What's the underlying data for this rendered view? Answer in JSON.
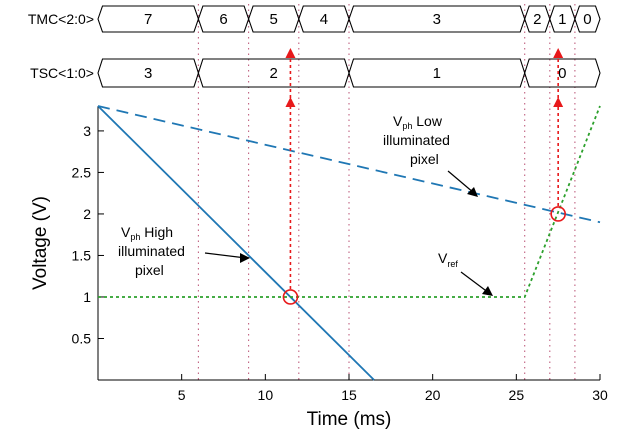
{
  "chart_data": {
    "type": "line",
    "xlabel": "Time (ms)",
    "ylabel": "Voltage (V)",
    "xlim": [
      0,
      30
    ],
    "ylim": [
      0,
      3.3
    ],
    "x_ticks": [
      5,
      10,
      15,
      20,
      25,
      30
    ],
    "y_ticks": [
      0.5,
      1,
      1.5,
      2,
      2.5,
      3
    ],
    "grid": "vertical dotted lines at bus transitions",
    "series": [
      {
        "id": "high",
        "style": "solid",
        "color": "#1f77b4",
        "points": [
          [
            0,
            3.3
          ],
          [
            16.5,
            0
          ]
        ]
      },
      {
        "id": "low",
        "style": "dashed",
        "color": "#1f77b4",
        "points": [
          [
            0,
            3.3
          ],
          [
            30,
            1.9
          ]
        ]
      },
      {
        "id": "ref",
        "style": "dotted",
        "color": "#2ca02c",
        "points": [
          [
            0,
            1
          ],
          [
            25.5,
            1
          ],
          [
            30,
            3.3
          ]
        ]
      }
    ],
    "crossings": [
      {
        "x": 11.5,
        "y": 1.0
      },
      {
        "x": 27.5,
        "y": 2.0
      }
    ],
    "timing_buses": [
      {
        "label": "TMC<2:0>",
        "segments": [
          {
            "from": 0,
            "to": 6,
            "value": "7"
          },
          {
            "from": 6,
            "to": 9,
            "value": "6"
          },
          {
            "from": 9,
            "to": 12,
            "value": "5"
          },
          {
            "from": 12,
            "to": 15,
            "value": "4"
          },
          {
            "from": 15,
            "to": 25.5,
            "value": "3"
          },
          {
            "from": 25.5,
            "to": 27,
            "value": "2"
          },
          {
            "from": 27,
            "to": 28.5,
            "value": "1"
          },
          {
            "from": 28.5,
            "to": 30,
            "value": "0"
          }
        ]
      },
      {
        "label": "TSC<1:0>",
        "segments": [
          {
            "from": 0,
            "to": 6,
            "value": "3"
          },
          {
            "from": 6,
            "to": 15,
            "value": "2"
          },
          {
            "from": 15,
            "to": 25.5,
            "value": "1"
          },
          {
            "from": 25.5,
            "to": 30,
            "value": "0"
          }
        ]
      }
    ],
    "annotations": [
      {
        "id": "high",
        "lines": [
          "V",
          "ph",
          " High",
          "illuminated",
          "pixel"
        ]
      },
      {
        "id": "low",
        "lines": [
          "V",
          "ph",
          " Low",
          "illuminated",
          "pixel"
        ]
      },
      {
        "id": "ref",
        "lines": [
          "V",
          "ref"
        ]
      }
    ]
  },
  "colors": {
    "solid_line": "#1f77b4",
    "dashed_line": "#1f77b4",
    "ref_line": "#2ca02c",
    "marker": "#e8191b",
    "grid": "#c06080"
  }
}
